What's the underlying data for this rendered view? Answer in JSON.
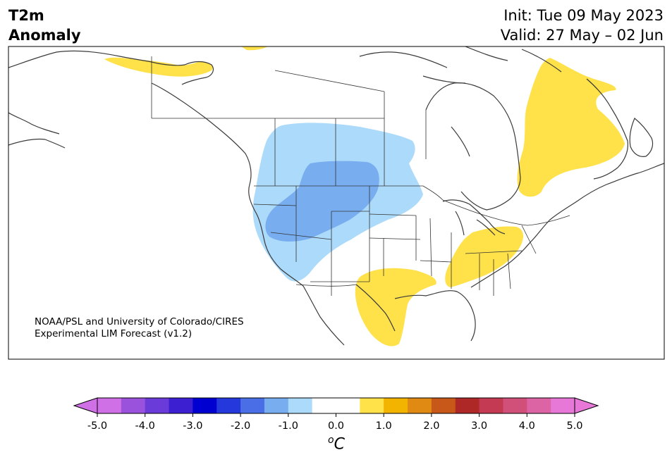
{
  "title": {
    "line1": "T2m",
    "line2": "Anomaly"
  },
  "forecast": {
    "init": "Init: Tue 09 May 2023",
    "valid": "Valid: 27 May – 02 Jun"
  },
  "credit": {
    "line1": "NOAA/PSL and University of Colorado/CIRES",
    "line2": "Experimental LIM Forecast (v1.2)"
  },
  "colorbar": {
    "unit_base": "C",
    "unit_sup": "o",
    "tick_labels": [
      "-5.0",
      "-4.0",
      "-3.0",
      "-2.0",
      "-1.0",
      "0.0",
      "1.0",
      "2.0",
      "3.0",
      "4.0",
      "5.0"
    ],
    "colors": [
      "#d070e6",
      "#9a52dc",
      "#6a3bd9",
      "#3c1fd0",
      "#0000d0",
      "#2438dc",
      "#4a6ee6",
      "#78aef0",
      "#acdafa",
      "#ffffff",
      "#ffffff",
      "#ffe14a",
      "#f2b400",
      "#e08a14",
      "#c8581a",
      "#ae2828",
      "#c43a52",
      "#d0507a",
      "#dc64a4",
      "#e878d8"
    ],
    "under_color": "#d070e6",
    "over_color": "#e878d8"
  },
  "anomaly_colors": {
    "warm_1": "#ffe14a",
    "cool_1": "#acdafa",
    "cool_2": "#78aef0"
  }
}
